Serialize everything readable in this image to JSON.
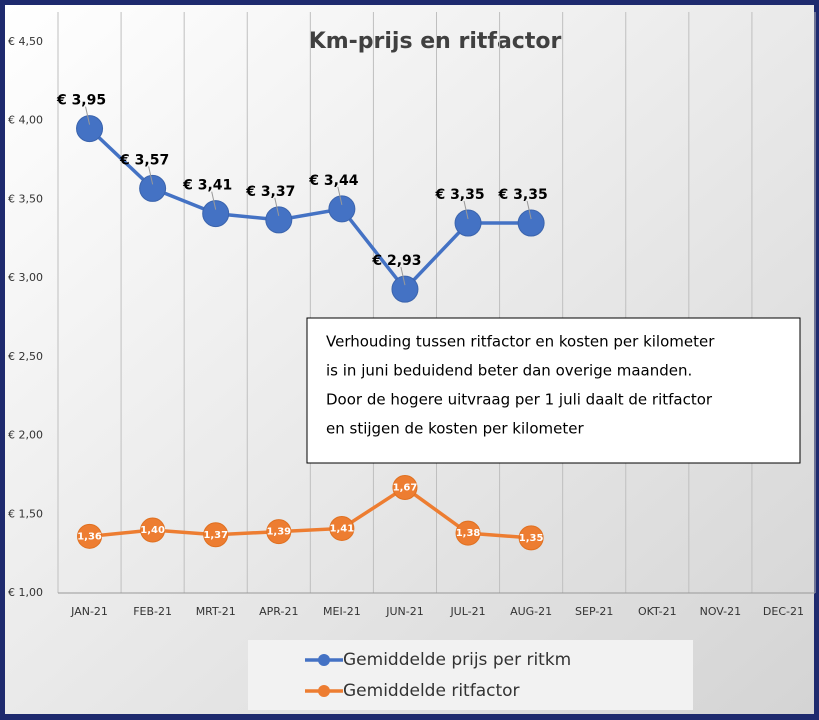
{
  "chart_data": {
    "type": "line",
    "title": "Km-prijs en ritfactor",
    "categories": [
      "JAN-21",
      "FEB-21",
      "MRT-21",
      "APR-21",
      "MEI-21",
      "JUN-21",
      "JUL-21",
      "AUG-21",
      "SEP-21",
      "OKT-21",
      "NOV-21",
      "DEC-21"
    ],
    "series": [
      {
        "name": "Gemiddelde prijs per ritkm",
        "color": "#4472c4",
        "values": [
          3.95,
          3.57,
          3.41,
          3.37,
          3.44,
          2.93,
          3.35,
          3.35,
          null,
          null,
          null,
          null
        ],
        "value_labels": [
          "€ 3,95",
          "€ 3,57",
          "€ 3,41",
          "€ 3,37",
          "€ 3,44",
          "€ 2,93",
          "€ 3,35",
          "€ 3,35",
          null,
          null,
          null,
          null
        ]
      },
      {
        "name": "Gemiddelde ritfactor",
        "color": "#ed7d31",
        "values": [
          1.36,
          1.4,
          1.37,
          1.39,
          1.41,
          1.67,
          1.38,
          1.35,
          null,
          null,
          null,
          null
        ],
        "value_labels": [
          "1,36",
          "1,40",
          "1,37",
          "1,39",
          "1,41",
          "1,67",
          "1,38",
          "1,35",
          null,
          null,
          null,
          null
        ]
      }
    ],
    "ylim": [
      1.0,
      4.5
    ],
    "yticks": [
      {
        "value": 1.0,
        "label": "€ 1,00"
      },
      {
        "value": 1.5,
        "label": "€ 1,50"
      },
      {
        "value": 2.0,
        "label": "€ 2,00"
      },
      {
        "value": 2.5,
        "label": "€ 2,50"
      },
      {
        "value": 3.0,
        "label": "€ 3,00"
      },
      {
        "value": 3.5,
        "label": "€ 3,50"
      },
      {
        "value": 4.0,
        "label": "€ 4,00"
      },
      {
        "value": 4.5,
        "label": "€ 4,50"
      }
    ],
    "grid": true,
    "legend": "bottom",
    "annotation": [
      "Verhouding tussen ritfactor en kosten per kilometer",
      "is in juni beduidend beter dan overige maanden.",
      "Door de hogere uitvraag per 1 juli daalt de ritfactor",
      "en stijgen de kosten per kilometer"
    ]
  }
}
